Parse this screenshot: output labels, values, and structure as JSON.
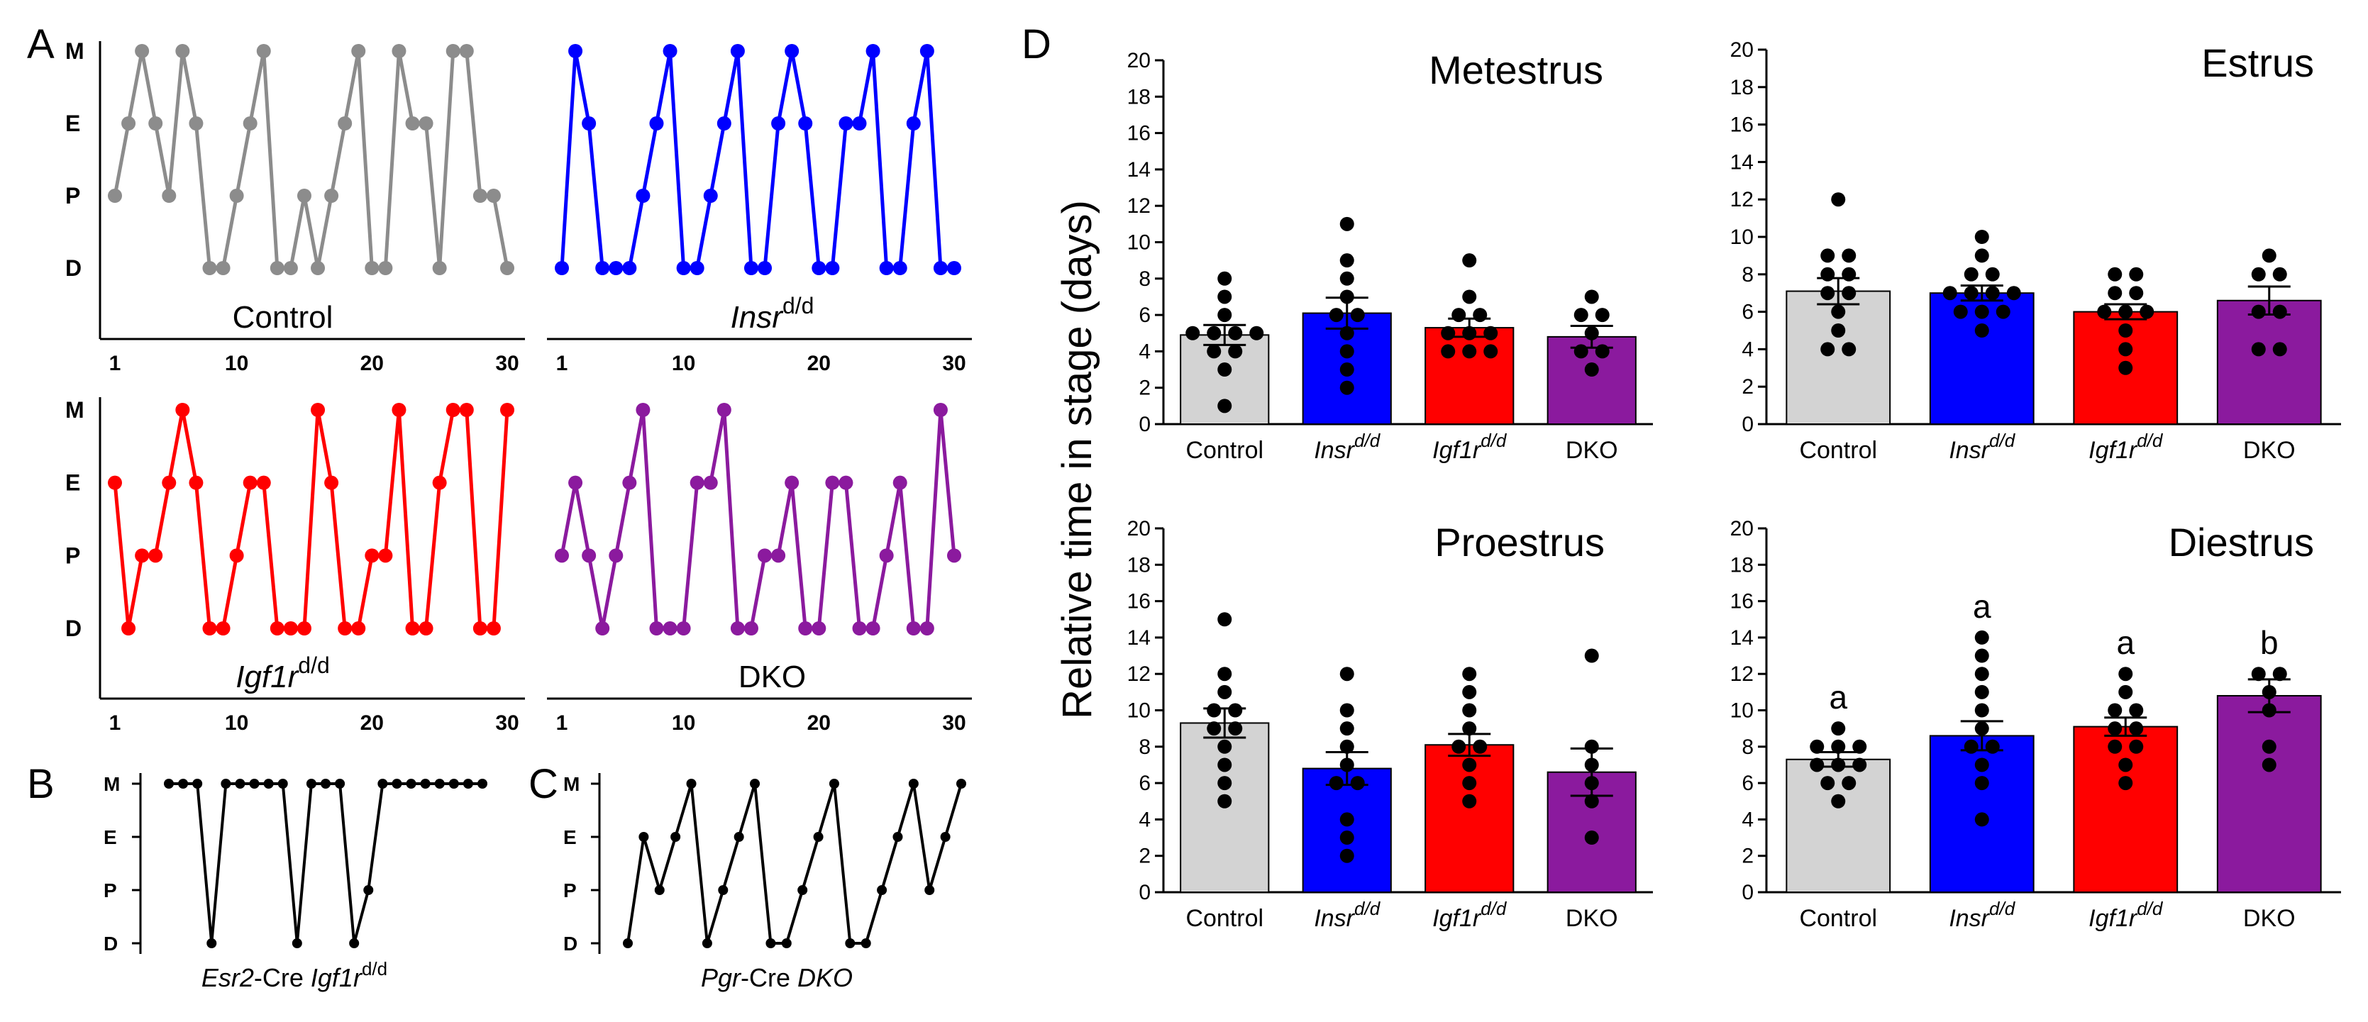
{
  "panels": {
    "A": "A",
    "B": "B",
    "C": "C",
    "D": "D"
  },
  "stage_labels": [
    "D",
    "P",
    "E",
    "M"
  ],
  "cycle_plots": [
    {
      "id": "control",
      "title": "Control",
      "title_italic": "",
      "title_sup": "",
      "color": "#8c8c8c",
      "x_ticks": [
        "1",
        "10",
        "20",
        "30"
      ],
      "stages": [
        1,
        2,
        3,
        2,
        1,
        3,
        2,
        0,
        0,
        1,
        2,
        3,
        0,
        0,
        1,
        0,
        1,
        2,
        3,
        0,
        0,
        3,
        2,
        2,
        0,
        3,
        3,
        1,
        1,
        0
      ]
    },
    {
      "id": "insr",
      "title": "",
      "title_italic": "Insr",
      "title_sup": "d/d",
      "color": "#0000ff",
      "x_ticks": [
        "1",
        "10",
        "20",
        "30"
      ],
      "stages": [
        0,
        3,
        2,
        0,
        0,
        0,
        1,
        2,
        3,
        0,
        0,
        1,
        2,
        3,
        0,
        0,
        2,
        3,
        2,
        0,
        0,
        2,
        2,
        3,
        0,
        0,
        2,
        3,
        0,
        0
      ]
    },
    {
      "id": "igf1r",
      "title": "",
      "title_italic": "Igf1r",
      "title_sup": "d/d",
      "color": "#ff0000",
      "x_ticks": [
        "1",
        "10",
        "20",
        "30"
      ],
      "stages": [
        2,
        0,
        1,
        1,
        2,
        3,
        2,
        0,
        0,
        1,
        2,
        2,
        0,
        0,
        0,
        3,
        2,
        0,
        0,
        1,
        1,
        3,
        0,
        0,
        2,
        3,
        3,
        0,
        0,
        3
      ]
    },
    {
      "id": "dko",
      "title": "DKO",
      "title_italic": "",
      "title_sup": "",
      "color": "#8b1a9e",
      "x_ticks": [
        "1",
        "10",
        "20",
        "30"
      ],
      "stages": [
        1,
        2,
        1,
        0,
        1,
        2,
        3,
        0,
        0,
        0,
        2,
        2,
        3,
        0,
        0,
        1,
        1,
        2,
        0,
        0,
        2,
        2,
        0,
        0,
        1,
        2,
        0,
        0,
        3,
        1
      ]
    }
  ],
  "mini_plots": [
    {
      "id": "esr2",
      "caption_italic": "Esr2",
      "caption_text": "-Cre ",
      "caption_italic2": "Igf1r",
      "caption_sup": "d/d",
      "stages": [
        3,
        3,
        3,
        0,
        3,
        3,
        3,
        3,
        3,
        0,
        3,
        3,
        3,
        0,
        1,
        3,
        3,
        3,
        3,
        3,
        3,
        3,
        3
      ]
    },
    {
      "id": "pgr",
      "caption_italic": "Pgr",
      "caption_text": "-Cre ",
      "caption_italic2": "DKO",
      "caption_sup": "",
      "stages": [
        0,
        2,
        1,
        2,
        3,
        0,
        1,
        2,
        3,
        0,
        0,
        1,
        2,
        3,
        0,
        0,
        1,
        2,
        3,
        1,
        2,
        3
      ]
    }
  ],
  "y_axis_label": "Relative time in stage (days)",
  "significance_letters": [
    "a",
    "a",
    "a",
    "b"
  ],
  "chart_data": [
    {
      "type": "bar",
      "title": "Metestrus",
      "categories": [
        "Control",
        "Insr",
        "Igf1r",
        "DKO"
      ],
      "category_sups": [
        "",
        "d/d",
        "d/d",
        ""
      ],
      "colors": [
        "#d3d3d3",
        "#0000ff",
        "#ff0000",
        "#8b1a9e"
      ],
      "values": [
        4.9,
        6.1,
        5.3,
        4.8
      ],
      "sem": [
        0.55,
        0.85,
        0.5,
        0.6
      ],
      "points": [
        [
          1,
          3,
          4,
          4,
          5,
          5,
          5,
          5,
          6,
          7,
          8
        ],
        [
          2,
          3,
          4,
          5,
          6,
          6,
          7,
          8,
          9,
          11
        ],
        [
          4,
          4,
          4,
          5,
          5,
          5,
          6,
          6,
          7,
          9
        ],
        [
          3,
          4,
          4,
          5,
          6,
          6,
          7
        ]
      ],
      "ylim": [
        0,
        20
      ],
      "yticks": [
        "0",
        "2",
        "4",
        "6",
        "8",
        "10",
        "12",
        "14",
        "16",
        "18",
        "20"
      ],
      "ylabel": "Relative time in stage (days)"
    },
    {
      "type": "bar",
      "title": "Estrus",
      "categories": [
        "Control",
        "Insr",
        "Igf1r",
        "DKO"
      ],
      "category_sups": [
        "",
        "d/d",
        "d/d",
        ""
      ],
      "colors": [
        "#d3d3d3",
        "#0000ff",
        "#ff0000",
        "#8b1a9e"
      ],
      "values": [
        7.1,
        7.0,
        6.0,
        6.6
      ],
      "sem": [
        0.7,
        0.4,
        0.4,
        0.75
      ],
      "points": [
        [
          4,
          4,
          5,
          6,
          7,
          7,
          8,
          8,
          9,
          9,
          12
        ],
        [
          5,
          6,
          6,
          6,
          7,
          7,
          7,
          7,
          8,
          8,
          9,
          10
        ],
        [
          3,
          4,
          5,
          6,
          6,
          6,
          7,
          7,
          8,
          8
        ],
        [
          4,
          4,
          6,
          6,
          8,
          8,
          9
        ]
      ],
      "ylim": [
        0,
        20
      ],
      "yticks": [
        "0",
        "2",
        "4",
        "6",
        "8",
        "10",
        "12",
        "14",
        "16",
        "18",
        "20"
      ],
      "ylabel": ""
    },
    {
      "type": "bar",
      "title": "Proestrus",
      "categories": [
        "Control",
        "Insr",
        "Igf1r",
        "DKO"
      ],
      "category_sups": [
        "",
        "d/d",
        "d/d",
        ""
      ],
      "colors": [
        "#d3d3d3",
        "#0000ff",
        "#ff0000",
        "#8b1a9e"
      ],
      "values": [
        9.3,
        6.8,
        8.1,
        6.6
      ],
      "sem": [
        0.8,
        0.9,
        0.6,
        1.3
      ],
      "points": [
        [
          5,
          6,
          7,
          8,
          9,
          9,
          10,
          10,
          11,
          12,
          15
        ],
        [
          2,
          3,
          4,
          6,
          6,
          7,
          8,
          9,
          10,
          12
        ],
        [
          5,
          6,
          7,
          8,
          8,
          9,
          10,
          11,
          12
        ],
        [
          3,
          5,
          6,
          7,
          8,
          13
        ]
      ],
      "ylim": [
        0,
        20
      ],
      "yticks": [
        "0",
        "2",
        "4",
        "6",
        "8",
        "10",
        "12",
        "14",
        "16",
        "18",
        "20"
      ],
      "ylabel": ""
    },
    {
      "type": "bar",
      "title": "Diestrus",
      "categories": [
        "Control",
        "Insr",
        "Igf1r",
        "DKO"
      ],
      "category_sups": [
        "",
        "d/d",
        "d/d",
        ""
      ],
      "colors": [
        "#d3d3d3",
        "#0000ff",
        "#ff0000",
        "#8b1a9e"
      ],
      "values": [
        7.3,
        8.6,
        9.1,
        10.8
      ],
      "sem": [
        0.4,
        0.8,
        0.5,
        0.9
      ],
      "points": [
        [
          5,
          6,
          6,
          7,
          7,
          7,
          8,
          8,
          8,
          9
        ],
        [
          4,
          6,
          7,
          8,
          8,
          9,
          10,
          11,
          12,
          13,
          14
        ],
        [
          6,
          7,
          8,
          8,
          9,
          9,
          10,
          10,
          11,
          12
        ],
        [
          7,
          8,
          10,
          11,
          12,
          12
        ]
      ],
      "ylim": [
        0,
        20
      ],
      "yticks": [
        "0",
        "2",
        "4",
        "6",
        "8",
        "10",
        "12",
        "14",
        "16",
        "18",
        "20"
      ],
      "ylabel": "",
      "letters": [
        "a",
        "a",
        "a",
        "b"
      ]
    }
  ]
}
